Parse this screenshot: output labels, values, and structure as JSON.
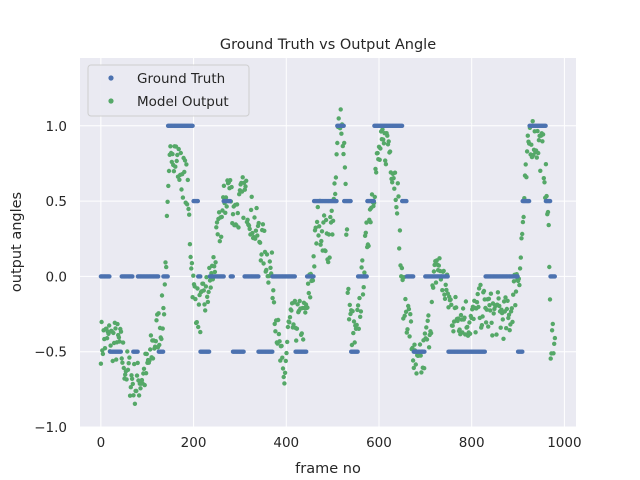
{
  "chart_data": {
    "type": "scatter",
    "title": "Ground Truth vs Output Angle",
    "xlabel": "frame no",
    "ylabel": "output angles",
    "xlim": [
      -45,
      1025
    ],
    "ylim": [
      -1.0,
      1.45
    ],
    "x_ticks": [
      0,
      200,
      400,
      600,
      800,
      1000
    ],
    "y_ticks": [
      -1.0,
      -0.5,
      0.0,
      0.5,
      1.0
    ],
    "x_tick_labels": [
      "0",
      "200",
      "400",
      "600",
      "800",
      "1000"
    ],
    "y_tick_labels": [
      "−1.0",
      "−0.5",
      "0.0",
      "0.5",
      "1.0"
    ],
    "grid": true,
    "legend_position": "upper-left",
    "series": [
      {
        "name": "Ground Truth",
        "color": "#4c72b0",
        "segments": [
          [
            0,
            20,
            0.0
          ],
          [
            20,
            45,
            -0.5
          ],
          [
            45,
            70,
            0.0
          ],
          [
            70,
            80,
            -0.5
          ],
          [
            80,
            125,
            0.0
          ],
          [
            125,
            135,
            -0.5
          ],
          [
            135,
            145,
            0.0
          ],
          [
            145,
            200,
            1.0
          ],
          [
            200,
            210,
            0.5
          ],
          [
            210,
            215,
            0.0
          ],
          [
            215,
            235,
            -0.5
          ],
          [
            235,
            265,
            0.0
          ],
          [
            265,
            280,
            0.5
          ],
          [
            280,
            285,
            0.0
          ],
          [
            285,
            310,
            -0.5
          ],
          [
            310,
            340,
            0.0
          ],
          [
            340,
            370,
            -0.5
          ],
          [
            370,
            420,
            0.0
          ],
          [
            420,
            445,
            -0.5
          ],
          [
            445,
            460,
            0.0
          ],
          [
            460,
            510,
            0.5
          ],
          [
            510,
            525,
            1.0
          ],
          [
            525,
            540,
            0.5
          ],
          [
            540,
            555,
            -0.5
          ],
          [
            555,
            575,
            0.0
          ],
          [
            575,
            590,
            0.5
          ],
          [
            590,
            650,
            1.0
          ],
          [
            650,
            660,
            0.5
          ],
          [
            660,
            675,
            0.0
          ],
          [
            675,
            700,
            -0.5
          ],
          [
            700,
            750,
            0.0
          ],
          [
            750,
            830,
            -0.5
          ],
          [
            830,
            900,
            0.0
          ],
          [
            900,
            910,
            -0.5
          ],
          [
            910,
            925,
            0.5
          ],
          [
            925,
            960,
            1.0
          ],
          [
            960,
            970,
            0.5
          ],
          [
            970,
            980,
            0.0
          ]
        ]
      },
      {
        "name": "Model Output",
        "color": "#55a868",
        "trend": [
          [
            0,
            -0.43
          ],
          [
            20,
            -0.42
          ],
          [
            40,
            -0.45
          ],
          [
            55,
            -0.62
          ],
          [
            75,
            -0.72
          ],
          [
            100,
            -0.62
          ],
          [
            120,
            -0.38
          ],
          [
            135,
            -0.25
          ],
          [
            145,
            0.45
          ],
          [
            152,
            0.92
          ],
          [
            165,
            0.75
          ],
          [
            185,
            0.62
          ],
          [
            200,
            -0.1
          ],
          [
            212,
            -0.25
          ],
          [
            225,
            -0.15
          ],
          [
            240,
            0.0
          ],
          [
            255,
            0.3
          ],
          [
            275,
            0.62
          ],
          [
            290,
            0.4
          ],
          [
            310,
            0.55
          ],
          [
            330,
            0.35
          ],
          [
            350,
            0.2
          ],
          [
            370,
            0.0
          ],
          [
            385,
            -0.5
          ],
          [
            395,
            -0.7
          ],
          [
            405,
            -0.35
          ],
          [
            420,
            -0.3
          ],
          [
            440,
            -0.3
          ],
          [
            455,
            0.0
          ],
          [
            470,
            0.4
          ],
          [
            490,
            0.2
          ],
          [
            505,
            0.5
          ],
          [
            515,
            1.15
          ],
          [
            525,
            0.85
          ],
          [
            535,
            -0.25
          ],
          [
            550,
            -0.45
          ],
          [
            565,
            0.0
          ],
          [
            585,
            0.55
          ],
          [
            600,
            0.8
          ],
          [
            620,
            0.9
          ],
          [
            640,
            0.55
          ],
          [
            650,
            -0.1
          ],
          [
            665,
            -0.3
          ],
          [
            680,
            -0.65
          ],
          [
            695,
            -0.55
          ],
          [
            710,
            -0.3
          ],
          [
            725,
            0.1
          ],
          [
            740,
            -0.05
          ],
          [
            760,
            -0.25
          ],
          [
            780,
            -0.25
          ],
          [
            800,
            -0.3
          ],
          [
            820,
            -0.2
          ],
          [
            840,
            -0.25
          ],
          [
            860,
            -0.25
          ],
          [
            880,
            -0.3
          ],
          [
            895,
            -0.05
          ],
          [
            905,
            0.1
          ],
          [
            915,
            0.55
          ],
          [
            925,
            0.95
          ],
          [
            940,
            0.9
          ],
          [
            955,
            0.8
          ],
          [
            965,
            0.4
          ],
          [
            970,
            -0.4
          ],
          [
            980,
            -0.38
          ]
        ]
      }
    ]
  }
}
